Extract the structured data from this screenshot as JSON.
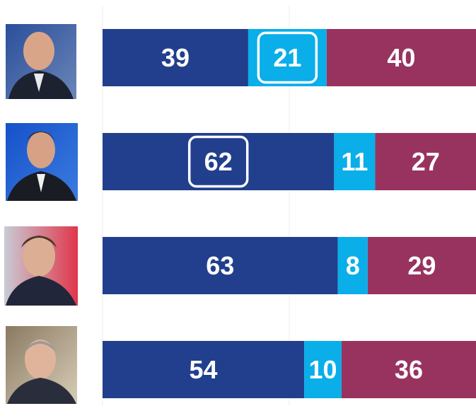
{
  "chart_data": {
    "type": "stacked-barh",
    "categories": [
      null,
      null,
      null,
      null
    ],
    "series": [
      {
        "color": "#213f8d",
        "values": [
          39,
          62,
          63,
          54
        ]
      },
      {
        "color": "#0aaee9",
        "values": [
          21,
          11,
          8,
          10
        ]
      },
      {
        "color": "#983360",
        "values": [
          40,
          27,
          29,
          36
        ]
      }
    ],
    "xlim": [
      0,
      100
    ],
    "xticks": [
      0,
      50
    ],
    "grid": true,
    "highlights": [
      {
        "series": 1,
        "index": 0
      },
      {
        "series": 0,
        "index": 1
      }
    ]
  }
}
